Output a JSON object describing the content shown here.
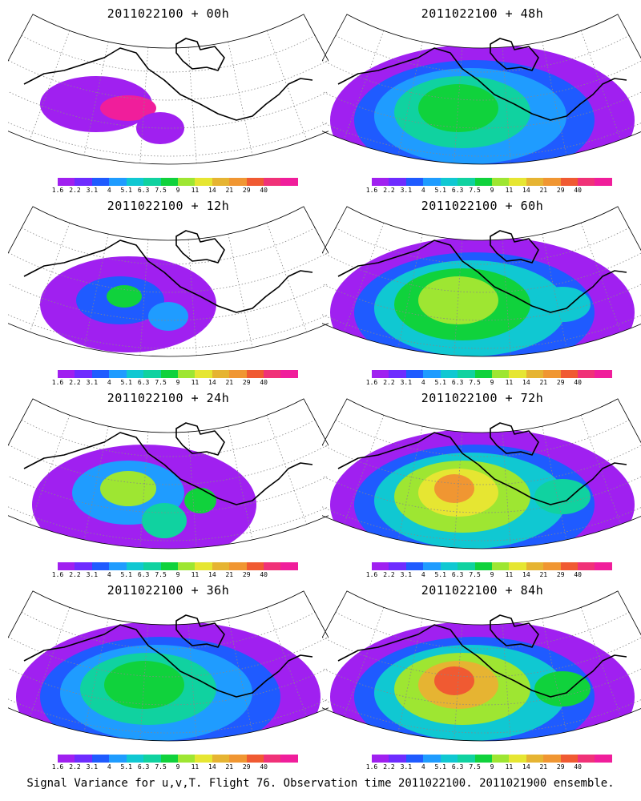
{
  "panels": [
    {
      "title": "2011022100 + 00h",
      "level": 0
    },
    {
      "title": "2011022100 + 48h",
      "level": 3
    },
    {
      "title": "2011022100 + 12h",
      "level": 1
    },
    {
      "title": "2011022100 + 60h",
      "level": 4
    },
    {
      "title": "2011022100 + 24h",
      "level": 2
    },
    {
      "title": "2011022100 + 72h",
      "level": 5
    },
    {
      "title": "2011022100 + 36h",
      "level": 3
    },
    {
      "title": "2011022100 + 84h",
      "level": 6
    }
  ],
  "colorbar": {
    "labels": [
      "1.6",
      "2.2",
      "3.1",
      "4",
      "5.1",
      "6.3",
      "7.5",
      "9",
      "11",
      "14",
      "21",
      "29",
      "40"
    ],
    "colors": [
      "#a020f0",
      "#6e2cff",
      "#1f5bff",
      "#1f9cff",
      "#10c8d2",
      "#10d2a0",
      "#10d23c",
      "#9ee632",
      "#e6e632",
      "#e6b432",
      "#f09632",
      "#f05a32",
      "#f03278",
      "#f01e9b"
    ]
  },
  "caption": "Signal Variance for u,v,T. Flight 76. Observation time 2011022100. 2011021900 ensemble."
}
